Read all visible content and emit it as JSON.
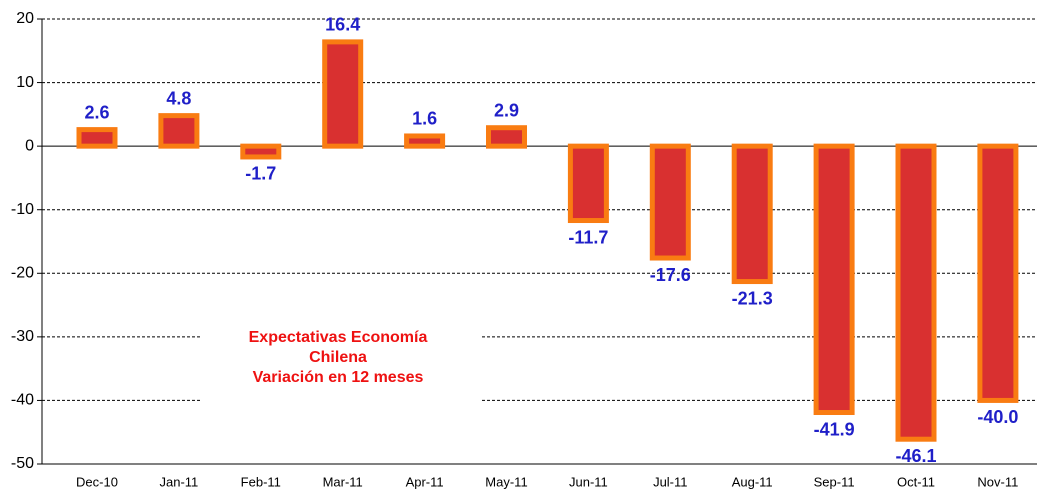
{
  "chart_data": {
    "type": "bar",
    "categories": [
      "Dec-10",
      "Jan-11",
      "Feb-11",
      "Mar-11",
      "Apr-11",
      "May-11",
      "Jun-11",
      "Jul-11",
      "Aug-11",
      "Sep-11",
      "Oct-11",
      "Nov-11"
    ],
    "values": [
      2.6,
      4.8,
      -1.7,
      16.4,
      1.6,
      2.9,
      -11.7,
      -17.6,
      -21.3,
      -41.9,
      -46.1,
      -40.0
    ],
    "value_labels": [
      "2.6",
      "4.8",
      "-1.7",
      "16.4",
      "1.6",
      "2.9",
      "-11.7",
      "-17.6",
      "-21.3",
      "-41.9",
      "-46.1",
      "-40.0"
    ],
    "color": "#d93030",
    "edge_color": "#f97c12",
    "ylim": [
      -50,
      20
    ],
    "yticks": [
      -50,
      -40,
      -30,
      -20,
      -10,
      0,
      10,
      20
    ],
    "grid": true,
    "annotation": [
      "Expectativas Economía",
      "Chilena",
      "Variación en 12 meses"
    ]
  }
}
